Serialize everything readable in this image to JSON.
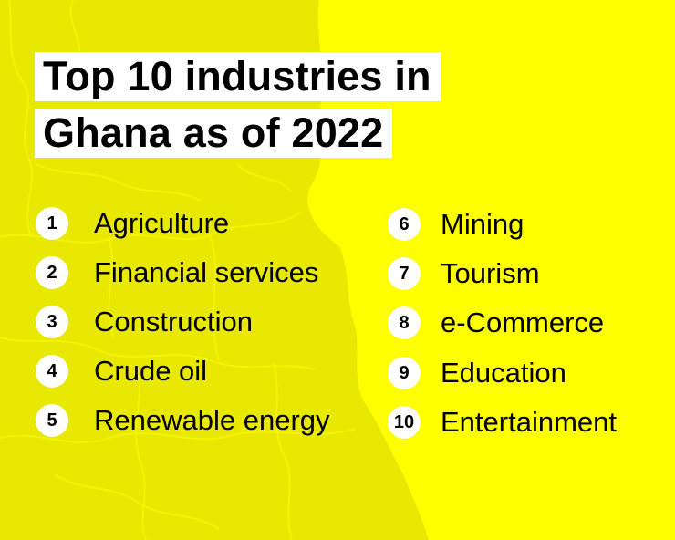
{
  "colors": {
    "background": "#ffff00",
    "map_overlay": "#e6e600",
    "title_box": "#ffffff",
    "text": "#000000",
    "badge": "#ffffff"
  },
  "title_lines": [
    "Top 10 industries in",
    "Ghana as of 2022"
  ],
  "industries_left": [
    {
      "rank": "1",
      "name": "Agriculture"
    },
    {
      "rank": "2",
      "name": "Financial services"
    },
    {
      "rank": "3",
      "name": "Construction"
    },
    {
      "rank": "4",
      "name": "Crude oil"
    },
    {
      "rank": "5",
      "name": "Renewable energy"
    }
  ],
  "industries_right": [
    {
      "rank": "6",
      "name": "Mining"
    },
    {
      "rank": "7",
      "name": "Tourism"
    },
    {
      "rank": "8",
      "name": "e-Commerce"
    },
    {
      "rank": "9",
      "name": "Education"
    },
    {
      "rank": "10",
      "name": "Entertainment"
    }
  ]
}
